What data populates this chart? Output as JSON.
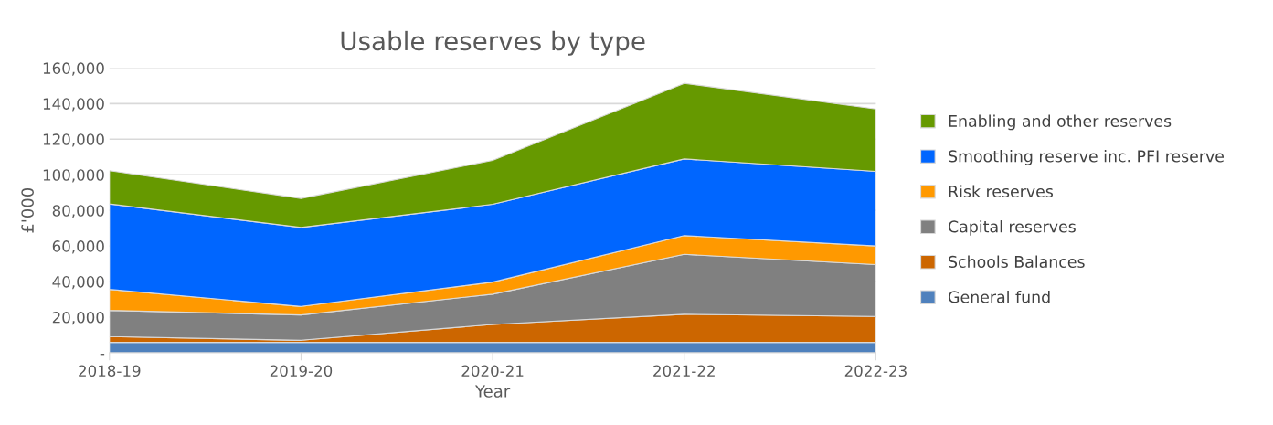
{
  "chart_data": {
    "type": "area",
    "stacked": true,
    "title": "Usable reserves by type",
    "xlabel": "Year",
    "ylabel": "£'000",
    "categories": [
      "2018-19",
      "2019-20",
      "2020-21",
      "2021-22",
      "2022-23"
    ],
    "series": [
      {
        "name": "General fund",
        "color": "#4f81bd",
        "values": [
          5800,
          5800,
          5800,
          5800,
          5800
        ]
      },
      {
        "name": "Schools Balances",
        "color": "#cc6600",
        "values": [
          3300,
          1200,
          10100,
          15800,
          14600
        ]
      },
      {
        "name": "Capital reserves",
        "color": "#808080",
        "values": [
          14700,
          14200,
          17000,
          33700,
          29100
        ]
      },
      {
        "name": "Risk reserves",
        "color": "#ff9900",
        "values": [
          11800,
          4800,
          6800,
          10500,
          10500
        ]
      },
      {
        "name": "Smoothing reserve inc. PFI reserve",
        "color": "#0066ff",
        "values": [
          48000,
          44400,
          43700,
          43100,
          41900
        ]
      },
      {
        "name": "Enabling and other reserves",
        "color": "#669900",
        "values": [
          18700,
          16300,
          24700,
          42500,
          35100
        ]
      }
    ],
    "ylim": [
      0,
      160000
    ],
    "yticks": [
      {
        "value": 0,
        "label": "-"
      },
      {
        "value": 20000,
        "label": "20,000"
      },
      {
        "value": 40000,
        "label": "40,000"
      },
      {
        "value": 60000,
        "label": "60,000"
      },
      {
        "value": 80000,
        "label": "80,000"
      },
      {
        "value": 100000,
        "label": "100,000"
      },
      {
        "value": 120000,
        "label": "120,000"
      },
      {
        "value": 140000,
        "label": "140,000"
      },
      {
        "value": 160000,
        "label": "160,000"
      }
    ],
    "grid": "y",
    "legend": "right"
  }
}
